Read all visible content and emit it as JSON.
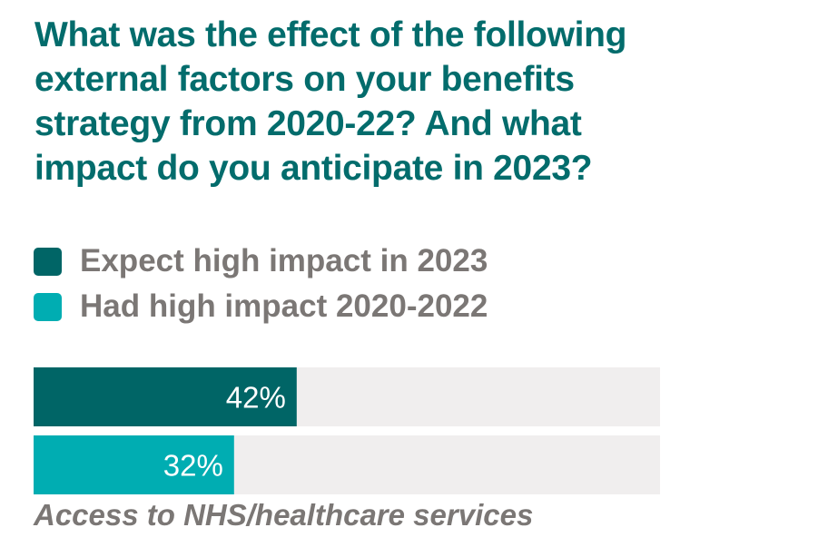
{
  "chart_data": {
    "type": "bar",
    "orientation": "horizontal",
    "title": "What was the effect of the following external factors on your benefits strategy from 2020-22? And what impact do you anticipate in 2023?",
    "categories": [
      "Access to NHS/healthcare services"
    ],
    "series": [
      {
        "name": "Expect high impact in 2023",
        "values": [
          42
        ],
        "labels": [
          "42%"
        ],
        "color": "#006566"
      },
      {
        "name": "Had high impact 2020-2022",
        "values": [
          32
        ],
        "labels": [
          "32%"
        ],
        "color": "#00adb2"
      }
    ],
    "xlim": [
      0,
      100
    ],
    "track_color": "#f0eeee",
    "legend": "top-left",
    "grid": false
  }
}
